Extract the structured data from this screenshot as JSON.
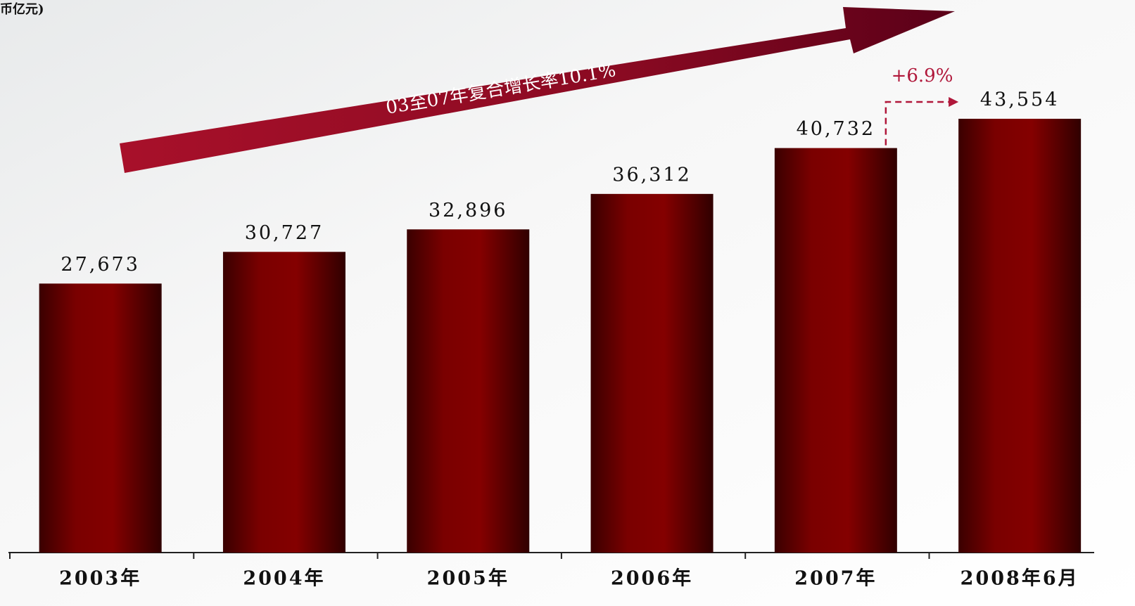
{
  "chart_data": {
    "type": "bar",
    "unit_label": "币亿元)",
    "categories": [
      "2003年",
      "2004年",
      "2005年",
      "2006年",
      "2007年",
      "2008年6月"
    ],
    "values": [
      27673,
      30727,
      32896,
      36312,
      40732,
      43554
    ],
    "value_labels": [
      "27,673",
      "30,727",
      "32,896",
      "36,312",
      "40,732",
      "43,554"
    ],
    "color": "#800000",
    "ylim": [
      1750,
      55000
    ],
    "annotations": {
      "growth_arrow": "03至07年复合增长率10.1%",
      "increase": "+6.9%"
    },
    "annotation_color": "#b0173a"
  }
}
